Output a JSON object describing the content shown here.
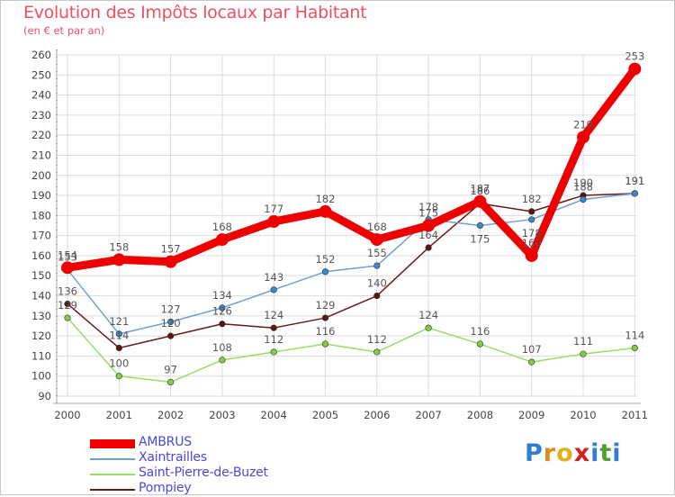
{
  "header": {
    "title": "Evolution des Impôts locaux par Habitant",
    "subtitle": "(en € et par an)"
  },
  "colors": {
    "title": "#ee5060",
    "legend_text": "#4a4adc",
    "grid": "#dddddd",
    "axis": "#aaaaaa",
    "axis_dash": "#cc2222"
  },
  "chart_data": {
    "type": "line",
    "title": "Evolution des Impôts locaux par Habitant",
    "subtitle": "(en € et par an)",
    "xlabel": "",
    "ylabel": "",
    "categories": [
      "2000",
      "2001",
      "2002",
      "2003",
      "2004",
      "2005",
      "2006",
      "2007",
      "2008",
      "2009",
      "2010",
      "2011"
    ],
    "ylim": [
      90,
      260
    ],
    "ytick_step": 10,
    "grid": true,
    "legend_position": "bottom-left",
    "series": [
      {
        "name": "Pompiey",
        "color": "#6b1a1a",
        "marker_color": "#5a1515",
        "values": [
          136,
          114,
          120,
          126,
          124,
          129,
          140,
          164,
          186,
          182,
          190,
          191
        ],
        "labels": [
          "136",
          "114",
          "120",
          "126",
          "124",
          "129",
          "140",
          "164",
          "186",
          "182",
          "190",
          "191"
        ],
        "label_side": [
          "above",
          "above",
          "above",
          "above",
          "above",
          "above",
          "above",
          "above",
          "above",
          "above",
          "above",
          "above"
        ]
      },
      {
        "name": "Saint-Pierre-de-Buzet",
        "color": "#99dd66",
        "marker_color": "#88cc44",
        "values": [
          129,
          100,
          97,
          108,
          112,
          116,
          112,
          124,
          116,
          107,
          111,
          114
        ],
        "labels": [
          "129",
          "100",
          "97",
          "108",
          "112",
          "116",
          "112",
          "124",
          "116",
          "107",
          "111",
          "114"
        ],
        "label_side": [
          "above",
          "above",
          "above",
          "above",
          "above",
          "above",
          "above",
          "above",
          "above",
          "above",
          "above",
          "above"
        ]
      },
      {
        "name": "Xaintrailles",
        "color": "#6fa0d0",
        "marker_color": "#3d88c8",
        "values": [
          153,
          121,
          127,
          134,
          143,
          152,
          155,
          178,
          175,
          178,
          188,
          191
        ],
        "labels": [
          "153",
          "121",
          "127",
          "134",
          "143",
          "152",
          "155",
          "178",
          "175",
          "178",
          "188",
          "191"
        ],
        "label_side": [
          "above",
          "above",
          "above",
          "above",
          "above",
          "above",
          "above",
          "above",
          "below",
          "below",
          "above",
          "above"
        ]
      },
      {
        "name": "AMBRUS",
        "color": "#ee0000",
        "marker_color": "#ee0000",
        "values": [
          154,
          158,
          157,
          168,
          177,
          182,
          168,
          175,
          187,
          160,
          219,
          253
        ],
        "labels": [
          "154",
          "158",
          "157",
          "168",
          "177",
          "182",
          "168",
          "175",
          "187",
          "160",
          "219",
          "253"
        ],
        "label_side": [
          "above",
          "above",
          "above",
          "above",
          "above",
          "above",
          "above",
          "above",
          "above",
          "above",
          "above",
          "above"
        ]
      }
    ]
  },
  "legend": {
    "items": [
      {
        "label": "AMBRUS",
        "color": "#ee0000",
        "thick": true
      },
      {
        "label": "Xaintrailles",
        "color": "#6fa0d0",
        "thick": false
      },
      {
        "label": "Saint-Pierre-de-Buzet",
        "color": "#99dd66",
        "thick": false
      },
      {
        "label": "Pompiey",
        "color": "#6b1a1a",
        "thick": false
      }
    ]
  },
  "logo": {
    "letters": [
      "P",
      "r",
      "o",
      "x",
      "i",
      "t",
      "i"
    ],
    "colors": [
      "#2d7fd0",
      "#e08a1e",
      "#e0b020",
      "#d02020",
      "#2d7fd0",
      "#50a030",
      "#2d7fd0"
    ]
  }
}
